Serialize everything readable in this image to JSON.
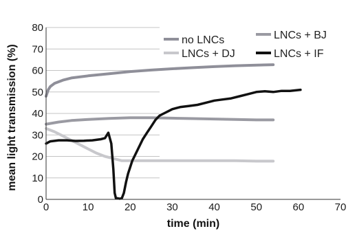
{
  "chart_data": {
    "type": "line",
    "xlabel": "time (min)",
    "ylabel": "mean light transmission (%)",
    "xlim": [
      0,
      70
    ],
    "ylim": [
      0,
      80
    ],
    "x_ticks": [
      0,
      10,
      20,
      30,
      40,
      50,
      60,
      70
    ],
    "y_ticks": [
      0,
      10,
      20,
      30,
      40,
      50,
      60,
      70,
      80
    ],
    "grid": "horizontal",
    "legend": "top-right, two columns",
    "series": [
      {
        "name": "no LNCs",
        "color": "#8f8f99",
        "x": [
          0,
          0.5,
          1,
          2,
          4,
          6,
          10,
          15,
          20,
          25,
          30,
          35,
          40,
          45,
          50,
          54
        ],
        "y": [
          48,
          51,
          52.5,
          54,
          55.5,
          56.5,
          57.5,
          58.5,
          59.5,
          60.2,
          60.8,
          61.3,
          61.8,
          62.2,
          62.5,
          62.7
        ]
      },
      {
        "name": "LNCs + BJ",
        "color": "#9a9aa2",
        "x": [
          0,
          3,
          6,
          10,
          15,
          20,
          25,
          30,
          35,
          40,
          45,
          50,
          54
        ],
        "y": [
          35,
          36,
          36.7,
          37.2,
          37.7,
          38,
          38,
          37.8,
          37.6,
          37.4,
          37.2,
          37,
          37
        ]
      },
      {
        "name": "LNCs + DJ",
        "color": "#c8c8cc",
        "x": [
          0,
          2,
          4,
          6,
          8,
          10,
          12,
          14,
          16,
          18,
          20,
          25,
          30,
          35,
          40,
          45,
          50,
          54
        ],
        "y": [
          33,
          31.5,
          29.5,
          27.5,
          25.5,
          23.5,
          21.5,
          20,
          19,
          18,
          18,
          18,
          18,
          18,
          18,
          18,
          17.8,
          17.8
        ]
      },
      {
        "name": "LNCs + IF",
        "color": "#111111",
        "x": [
          0,
          1,
          3,
          5,
          7,
          9,
          11,
          13,
          14,
          14.8,
          15.5,
          16,
          16.3,
          16.6,
          17,
          17.5,
          18,
          18.5,
          19,
          19.5,
          20,
          20.5,
          21,
          22,
          23,
          24,
          25,
          26,
          27,
          28,
          29,
          30,
          32,
          34,
          36,
          38,
          40,
          42,
          44,
          46,
          48,
          50,
          52,
          54,
          56,
          58,
          60.5
        ],
        "y": [
          26,
          27,
          27.5,
          27.5,
          27.2,
          27.3,
          27.5,
          28,
          28.5,
          31,
          26,
          14,
          3,
          0.5,
          0.5,
          0.3,
          0.5,
          3,
          8,
          12,
          15,
          18,
          20,
          24,
          28,
          31,
          34,
          37,
          39,
          40,
          41,
          42,
          43,
          43.5,
          44,
          45,
          46,
          46.5,
          47,
          48,
          49,
          50,
          50.3,
          50,
          50.5,
          50.5,
          51
        ]
      }
    ]
  }
}
